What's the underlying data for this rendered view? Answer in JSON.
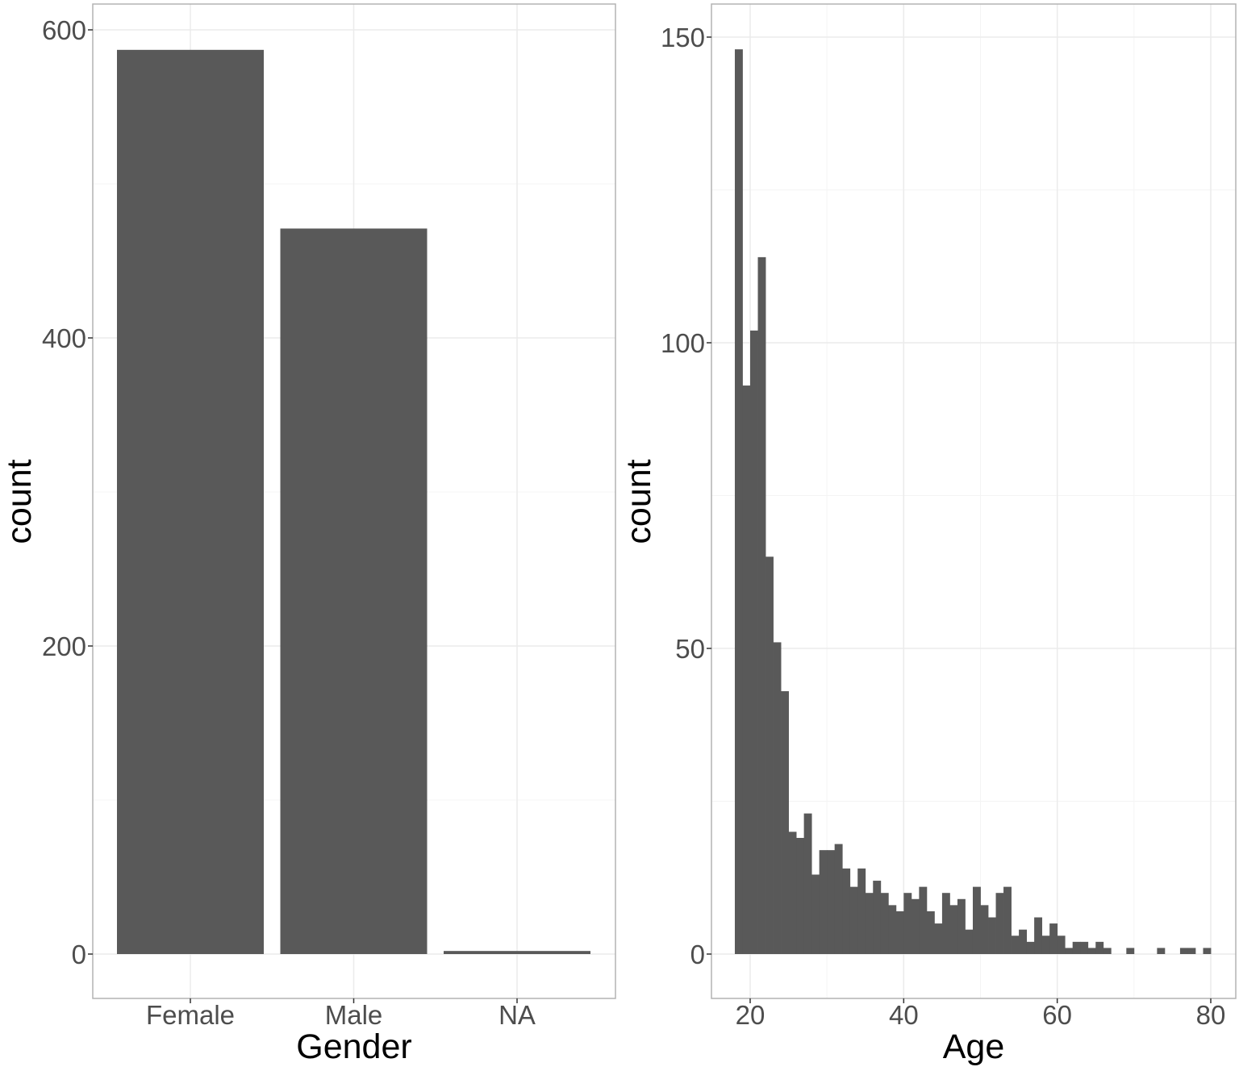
{
  "chart_data": [
    {
      "type": "bar",
      "xlabel": "Gender",
      "ylabel": "count",
      "categories": [
        "Female",
        "Male",
        "NA"
      ],
      "values": [
        587,
        471,
        2
      ],
      "ylim": [
        -30,
        604
      ],
      "yticks": [
        "0",
        "200",
        "400",
        "600"
      ],
      "ytick_values": [
        0,
        200,
        400,
        600
      ],
      "grid": true,
      "bar_color": "#595959"
    },
    {
      "type": "bar",
      "subtype": "histogram",
      "xlabel": "Age",
      "ylabel": "count",
      "bin_width": 1,
      "bin_start": 18,
      "counts": [
        148,
        93,
        102,
        114,
        65,
        51,
        43,
        20,
        19,
        23,
        13,
        17,
        17,
        18,
        14,
        11,
        14,
        10,
        12,
        10,
        8,
        7,
        10,
        9,
        11,
        7,
        5,
        10,
        8,
        9,
        4,
        11,
        8,
        6,
        10,
        11,
        3,
        4,
        2,
        6,
        3,
        5,
        3,
        1,
        2,
        2,
        1,
        2,
        1,
        0,
        0,
        1,
        0,
        0,
        0,
        1,
        0,
        0,
        1,
        1,
        0,
        1
      ],
      "xlim": [
        15,
        83
      ],
      "ylim": [
        -7.3,
        156.5
      ],
      "xticks": [
        "20",
        "40",
        "60",
        "80"
      ],
      "xtick_values": [
        20,
        40,
        60,
        80
      ],
      "yticks": [
        "0",
        "50",
        "100",
        "150"
      ],
      "ytick_values": [
        0,
        50,
        100,
        150
      ],
      "grid": true,
      "bar_color": "#595959"
    }
  ]
}
